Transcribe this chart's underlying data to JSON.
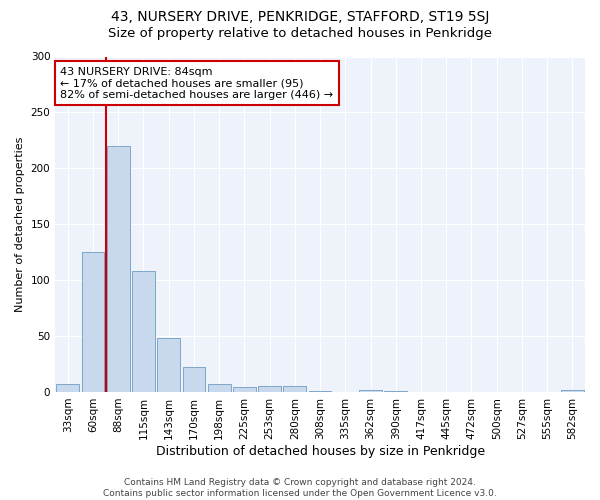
{
  "title": "43, NURSERY DRIVE, PENKRIDGE, STAFFORD, ST19 5SJ",
  "subtitle": "Size of property relative to detached houses in Penkridge",
  "xlabel": "Distribution of detached houses by size in Penkridge",
  "ylabel": "Number of detached properties",
  "categories": [
    "33sqm",
    "60sqm",
    "88sqm",
    "115sqm",
    "143sqm",
    "170sqm",
    "198sqm",
    "225sqm",
    "253sqm",
    "280sqm",
    "308sqm",
    "335sqm",
    "362sqm",
    "390sqm",
    "417sqm",
    "445sqm",
    "472sqm",
    "500sqm",
    "527sqm",
    "555sqm",
    "582sqm"
  ],
  "values": [
    7,
    125,
    220,
    108,
    48,
    22,
    7,
    4,
    5,
    5,
    1,
    0,
    2,
    1,
    0,
    0,
    0,
    0,
    0,
    0,
    2
  ],
  "bar_color": "#c9d9ed",
  "bar_edge_color": "#5b8db8",
  "vline_color": "#cc0000",
  "annotation_text": "43 NURSERY DRIVE: 84sqm\n← 17% of detached houses are smaller (95)\n82% of semi-detached houses are larger (446) →",
  "annotation_box_color": "#ffffff",
  "annotation_box_edge_color": "#cc0000",
  "ylim": [
    0,
    300
  ],
  "yticks": [
    0,
    50,
    100,
    150,
    200,
    250,
    300
  ],
  "background_color": "#eef2fb",
  "footer_text": "Contains HM Land Registry data © Crown copyright and database right 2024.\nContains public sector information licensed under the Open Government Licence v3.0.",
  "title_fontsize": 10,
  "subtitle_fontsize": 9.5,
  "xlabel_fontsize": 9,
  "ylabel_fontsize": 8,
  "tick_fontsize": 7.5,
  "annotation_fontsize": 8,
  "footer_fontsize": 6.5
}
